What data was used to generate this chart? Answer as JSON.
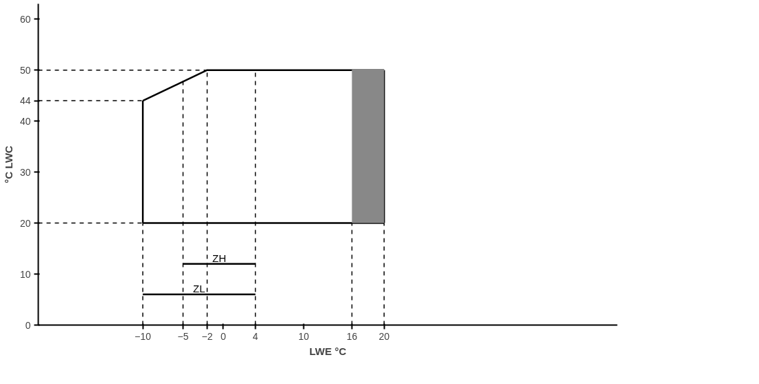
{
  "chart_data": {
    "type": "line",
    "xlabel": "LWE °C",
    "ylabel": "°C LWC",
    "xlim": [
      -23,
      49
    ],
    "ylim": [
      0,
      63
    ],
    "xticks": [
      -10,
      -5,
      -2,
      0,
      4,
      10,
      16,
      20
    ],
    "yticks": [
      0,
      10,
      20,
      30,
      40,
      44,
      50,
      60
    ],
    "grid": false,
    "marker": "none",
    "line_style": "solid",
    "series": [
      {
        "color": "#000000",
        "x": [
          -10,
          -2,
          20
        ],
        "values": [
          44,
          50,
          50
        ]
      },
      {
        "type": "line",
        "color": "#000000",
        "x": [
          -10,
          20
        ],
        "values": [
          20,
          20
        ]
      },
      {
        "type": "line",
        "color": "#000000",
        "x": [
          -10,
          -10
        ],
        "values": [
          20,
          44
        ]
      },
      {
        "type": "line",
        "color": "#000000",
        "x": [
          20,
          20
        ],
        "values": [
          20,
          50
        ]
      },
      {
        "type": "line",
        "name": "ZH",
        "color": "#000000",
        "x": [
          -5,
          4
        ],
        "values": [
          12,
          12
        ]
      },
      {
        "type": "line",
        "name": "ZL",
        "color": "#000000",
        "x": [
          -10,
          4
        ],
        "values": [
          6,
          6
        ]
      },
      {
        "type": "line",
        "line_style": "dashed",
        "color": "#000000",
        "x": [
          -23,
          -2
        ],
        "values": [
          50,
          50
        ]
      },
      {
        "type": "line",
        "line_style": "dashed",
        "color": "#000000",
        "x": [
          -23,
          -10
        ],
        "values": [
          44,
          44
        ]
      },
      {
        "type": "line",
        "line_style": "dashed",
        "color": "#000000",
        "x": [
          -23,
          -10
        ],
        "values": [
          20,
          20
        ]
      },
      {
        "type": "line",
        "line_style": "dashed",
        "color": "#000000",
        "x": [
          -10,
          -10
        ],
        "values": [
          0,
          20
        ]
      },
      {
        "type": "line",
        "line_style": "dashed",
        "color": "#000000",
        "x": [
          -5,
          -5
        ],
        "values": [
          0,
          48
        ]
      },
      {
        "type": "line",
        "line_style": "dashed",
        "color": "#000000",
        "x": [
          -2,
          -2
        ],
        "values": [
          0,
          50
        ]
      },
      {
        "type": "line",
        "line_style": "dashed",
        "color": "#000000",
        "x": [
          4,
          4
        ],
        "values": [
          0,
          50
        ]
      },
      {
        "type": "line",
        "line_style": "dashed",
        "color": "#000000",
        "x": [
          16,
          16
        ],
        "values": [
          0,
          20
        ]
      },
      {
        "type": "line",
        "line_style": "dashed",
        "color": "#000000",
        "x": [
          20,
          20
        ],
        "values": [
          0,
          20
        ]
      },
      {
        "type": "line",
        "color": "#888888",
        "x": [
          16,
          20
        ],
        "values": [
          50,
          50
        ],
        "lower": [
          20,
          20
        ],
        "upper": [
          50,
          50
        ]
      }
    ]
  }
}
